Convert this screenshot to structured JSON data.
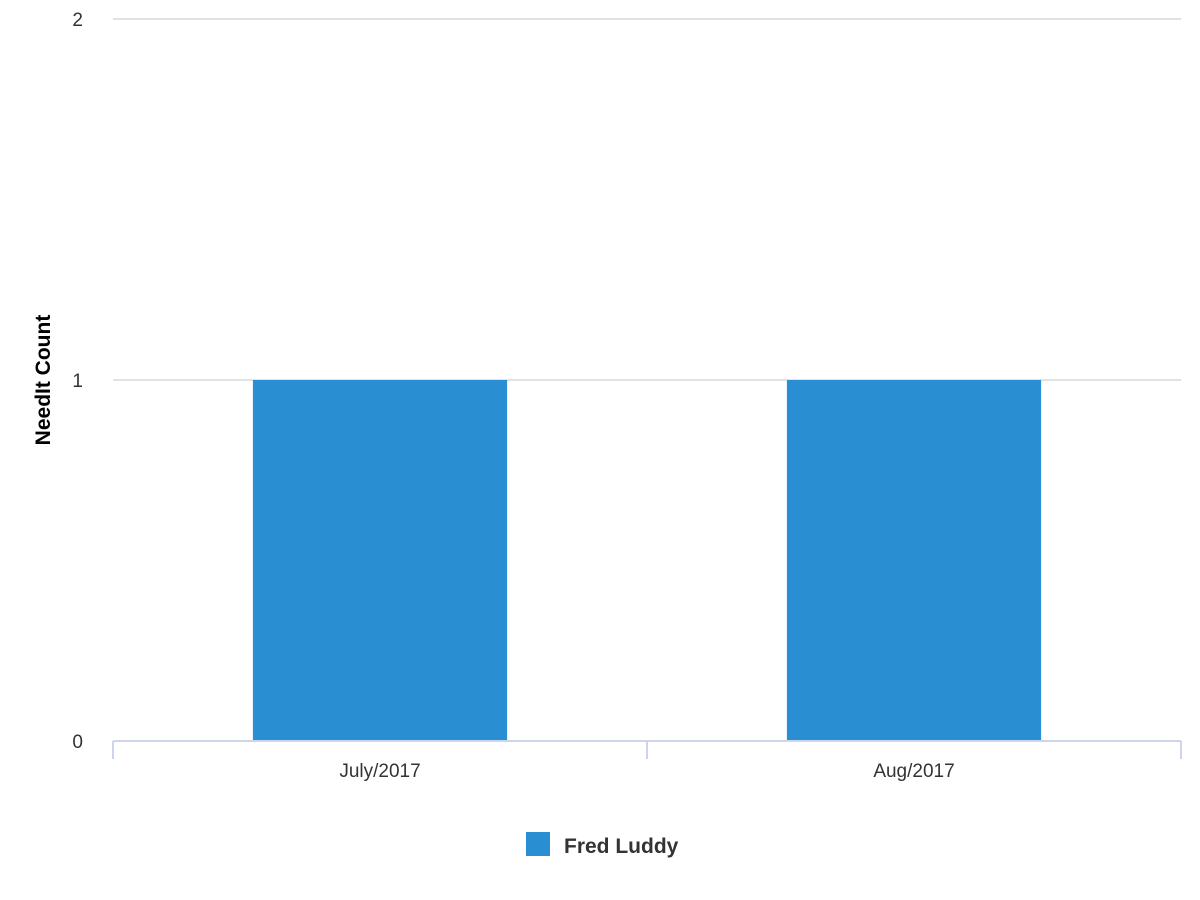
{
  "chart_data": {
    "type": "bar",
    "title": "",
    "xlabel": "",
    "ylabel": "NeedIt Count",
    "categories": [
      "July/2017",
      "Aug/2017"
    ],
    "series": [
      {
        "name": "Fred Luddy",
        "values": [
          1,
          1
        ],
        "color": "#2a8fd2"
      }
    ],
    "ylim": [
      0,
      2
    ],
    "yticks": [
      0,
      1,
      2
    ],
    "grid": true,
    "legend": "bottom-center",
    "colors": {
      "grid": "#d8d8d8",
      "axis": "#ccd6eb"
    }
  }
}
